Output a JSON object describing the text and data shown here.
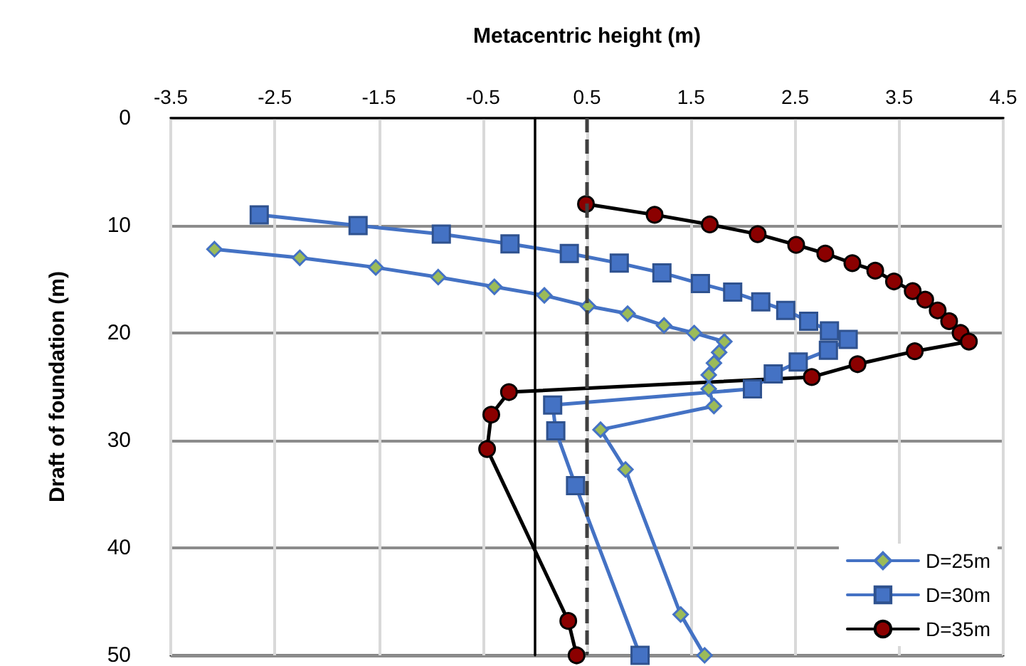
{
  "chart_data": {
    "type": "line",
    "xlabel": "Metacentric height (m)",
    "ylabel": "Draft of foundation (m)",
    "xlim": [
      -3.5,
      4.5
    ],
    "xticks": [
      -3.5,
      -2.5,
      -1.5,
      -0.5,
      0.5,
      1.5,
      2.5,
      3.5,
      4.5
    ],
    "ylim": [
      50,
      0
    ],
    "yticks": [
      0,
      10,
      20,
      30,
      40,
      50
    ],
    "grid": true,
    "legend": "bottom right",
    "ref_lines": [
      {
        "axis": "x",
        "value": 0,
        "color": "#000000",
        "line_style": "solid"
      },
      {
        "axis": "x",
        "value": 0.5,
        "color": "#404040",
        "line_style": "dashed"
      }
    ],
    "series": [
      {
        "name": "D=25m",
        "color": "#4472c4",
        "marker": "diamond",
        "x": [
          -3.08,
          -2.26,
          -1.53,
          -0.93,
          -0.39,
          0.09,
          0.51,
          0.89,
          1.24,
          1.53,
          1.82,
          1.77,
          1.72,
          1.67,
          1.67,
          1.72,
          0.63,
          0.87,
          1.4,
          1.63
        ],
        "values": [
          12.2,
          13.0,
          13.9,
          14.8,
          15.7,
          16.5,
          17.5,
          18.2,
          19.3,
          20.0,
          20.8,
          21.8,
          22.8,
          23.9,
          25.2,
          26.8,
          29.0,
          32.7,
          46.2,
          50.0
        ]
      },
      {
        "name": "D=30m",
        "color": "#4472c4",
        "marker": "square",
        "x": [
          -2.65,
          -1.7,
          -0.9,
          -0.24,
          0.33,
          0.81,
          1.22,
          1.59,
          1.9,
          2.17,
          2.41,
          2.63,
          2.83,
          3.01,
          2.82,
          2.53,
          2.29,
          2.09,
          0.17,
          0.2,
          0.39,
          1.01
        ],
        "values": [
          9.0,
          10.0,
          10.8,
          11.7,
          12.6,
          13.5,
          14.4,
          15.4,
          16.2,
          17.1,
          17.9,
          18.9,
          19.8,
          20.6,
          21.6,
          22.7,
          23.8,
          25.2,
          26.7,
          29.1,
          34.2,
          50.0
        ]
      },
      {
        "name": "D=35m",
        "color": "#000000",
        "marker": "circle",
        "x": [
          0.49,
          1.15,
          1.68,
          2.14,
          2.51,
          2.79,
          3.05,
          3.27,
          3.45,
          3.63,
          3.75,
          3.87,
          3.98,
          4.09,
          4.17,
          3.65,
          3.1,
          2.66,
          -0.25,
          -0.42,
          -0.46,
          0.32,
          0.4
        ],
        "values": [
          8.0,
          9.0,
          9.9,
          10.8,
          11.8,
          12.6,
          13.5,
          14.2,
          15.2,
          16.1,
          16.9,
          17.9,
          18.9,
          20.0,
          20.8,
          21.7,
          22.9,
          24.1,
          25.5,
          27.6,
          30.8,
          46.8,
          50.0
        ]
      }
    ]
  }
}
